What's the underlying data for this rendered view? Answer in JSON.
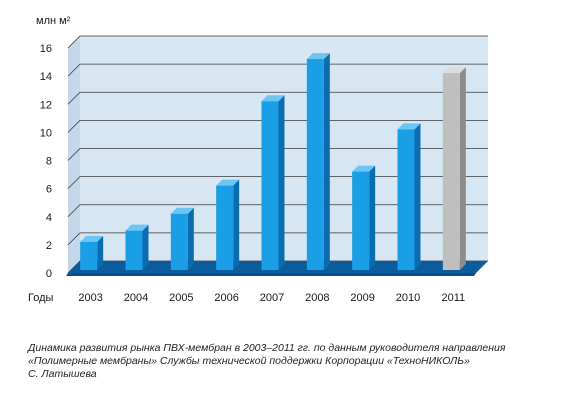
{
  "chart_data": {
    "type": "bar",
    "ylabel": "млн м²",
    "xlabel": "Годы",
    "ylim": [
      0,
      16
    ],
    "yticks": [
      0,
      2,
      4,
      6,
      8,
      10,
      12,
      14,
      16
    ],
    "grid": true,
    "categories": [
      "2003",
      "2004",
      "2005",
      "2006",
      "2007",
      "2008",
      "2009",
      "2010",
      "2011"
    ],
    "values": [
      2,
      2.8,
      4,
      6,
      12,
      15,
      7,
      10,
      14
    ],
    "colors": {
      "bar": "#1a9ee6",
      "bar_side": "#0b6db0",
      "bar_top": "#6cc6f3",
      "bar_last": "#bfbfbf",
      "bar_last_side": "#8c8c8c",
      "bar_last_top": "#dcdcdc",
      "back_wall": "#d6e6f3",
      "floor": "#0a5c9c",
      "floor_edge": "#0a4f86"
    }
  },
  "caption": {
    "line1": "Динамика развития рынка ПВХ-мембран в 2003–2011 гг. по данным руководителя направления",
    "line2": "«Полимерные мембраны» Службы технической поддержки Корпорации «ТехноНИКОЛЬ»",
    "line3": "С. Латышева"
  }
}
